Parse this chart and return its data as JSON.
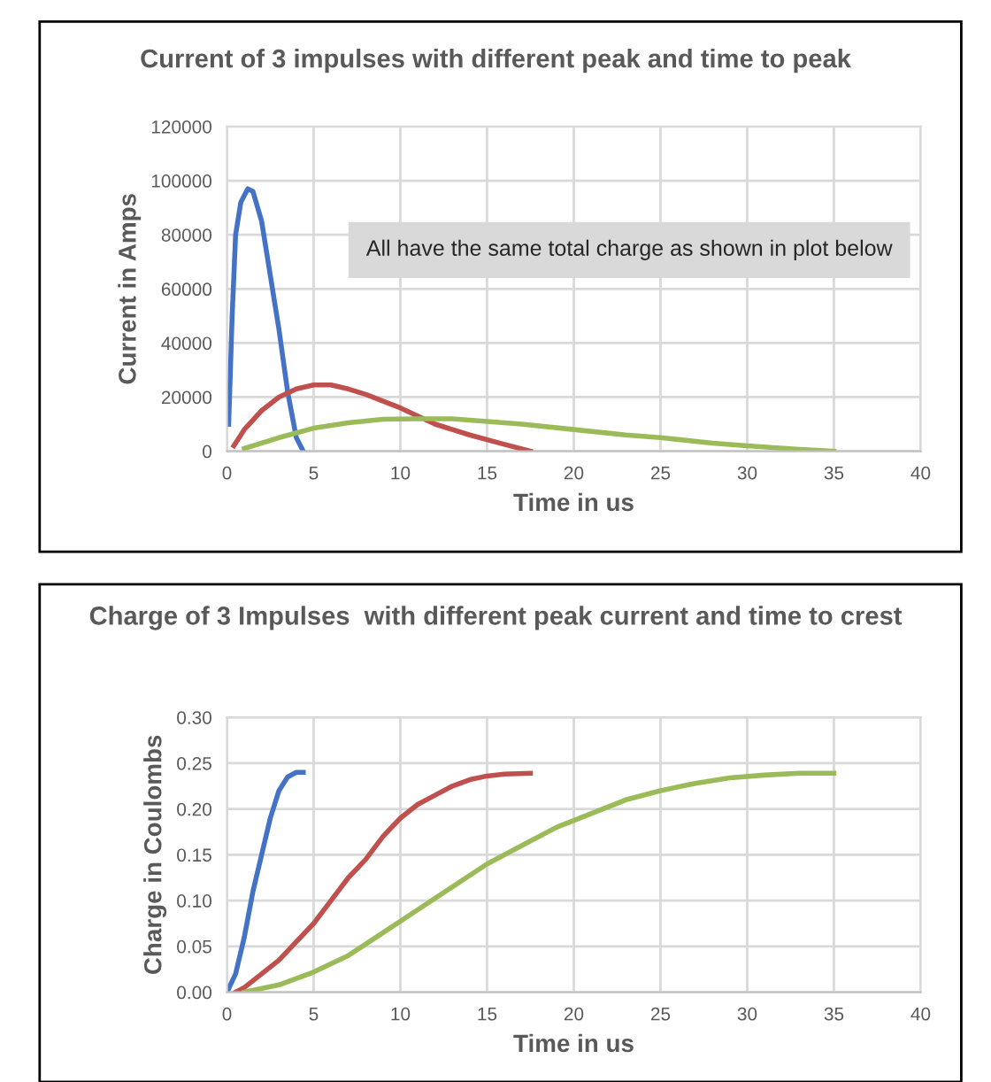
{
  "chart_data": [
    {
      "type": "line",
      "title": "Current of 3 impulses with different peak and time to peak",
      "xlabel": "Time in us",
      "ylabel": "Current in Amps",
      "annotations": [
        "All have the same total charge as shown in plot below"
      ],
      "xlim": [
        0,
        40
      ],
      "xticks": [
        0,
        5,
        10,
        15,
        20,
        25,
        30,
        35,
        40
      ],
      "ylim": [
        0,
        120000
      ],
      "yticks": [
        0,
        20000,
        40000,
        60000,
        80000,
        100000,
        120000
      ],
      "grid": true,
      "legend": false,
      "marker": "none",
      "line_style": "solid",
      "series": [
        {
          "color": "#4472c4",
          "x": [
            0.1,
            0.3,
            0.5,
            0.8,
            1.2,
            1.5,
            2,
            2.5,
            3,
            3.5,
            4,
            4.4
          ],
          "values": [
            10000,
            50000,
            80000,
            92000,
            97000,
            96000,
            85000,
            65000,
            45000,
            22000,
            5000,
            0
          ]
        },
        {
          "color": "#c0504d",
          "x": [
            0.4,
            1,
            2,
            3,
            4,
            5,
            6,
            7,
            8,
            10,
            12,
            14,
            16,
            17.5
          ],
          "values": [
            2000,
            8000,
            15000,
            20000,
            23000,
            24500,
            24500,
            23000,
            21000,
            16000,
            10000,
            6000,
            2500,
            0
          ]
        },
        {
          "color": "#9bbb59",
          "x": [
            1,
            3,
            5,
            7,
            9,
            11,
            13,
            15,
            17,
            20,
            23,
            25,
            28,
            30,
            33,
            35
          ],
          "values": [
            1000,
            5000,
            8500,
            10500,
            11800,
            12000,
            12000,
            11000,
            10000,
            8000,
            6000,
            5000,
            3000,
            2000,
            700,
            0
          ]
        }
      ]
    },
    {
      "type": "line",
      "title": "Charge of 3 Impulses  with different peak current and time to crest",
      "xlabel": "Time in us",
      "ylabel": "Charge in Coulombs",
      "xlim": [
        0,
        40
      ],
      "xticks": [
        0,
        5,
        10,
        15,
        20,
        25,
        30,
        35,
        40
      ],
      "ylim": [
        0,
        0.3
      ],
      "yticks": [
        {
          "value": 0,
          "label": "0.00"
        },
        {
          "value": 0.05,
          "label": "0.05"
        },
        {
          "value": 0.1,
          "label": "0.10"
        },
        {
          "value": 0.15,
          "label": "0.15"
        },
        {
          "value": 0.2,
          "label": "0.20"
        },
        {
          "value": 0.25,
          "label": "0.25"
        },
        {
          "value": 0.3,
          "label": "0.30"
        }
      ],
      "grid": true,
      "legend": false,
      "marker": "none",
      "line_style": "solid",
      "series": [
        {
          "color": "#4472c4",
          "x": [
            0,
            0.5,
            1,
            1.5,
            2,
            2.5,
            3,
            3.5,
            4,
            4.4
          ],
          "values": [
            0,
            0.02,
            0.06,
            0.11,
            0.15,
            0.19,
            0.22,
            0.235,
            0.24,
            0.24
          ]
        },
        {
          "color": "#c0504d",
          "x": [
            0.5,
            1,
            2,
            3,
            4,
            5,
            6,
            7,
            8,
            9,
            10,
            11,
            12,
            13,
            14,
            15,
            16,
            17.5
          ],
          "values": [
            0,
            0.005,
            0.02,
            0.035,
            0.055,
            0.075,
            0.1,
            0.125,
            0.145,
            0.17,
            0.19,
            0.205,
            0.215,
            0.225,
            0.232,
            0.236,
            0.238,
            0.239
          ]
        },
        {
          "color": "#9bbb59",
          "x": [
            1,
            3,
            5,
            7,
            9,
            11,
            13,
            15,
            17,
            19,
            21,
            23,
            25,
            27,
            29,
            31,
            33,
            35
          ],
          "values": [
            0,
            0.008,
            0.022,
            0.04,
            0.065,
            0.09,
            0.115,
            0.14,
            0.16,
            0.18,
            0.195,
            0.21,
            0.22,
            0.228,
            0.234,
            0.237,
            0.239,
            0.239
          ]
        }
      ]
    }
  ]
}
